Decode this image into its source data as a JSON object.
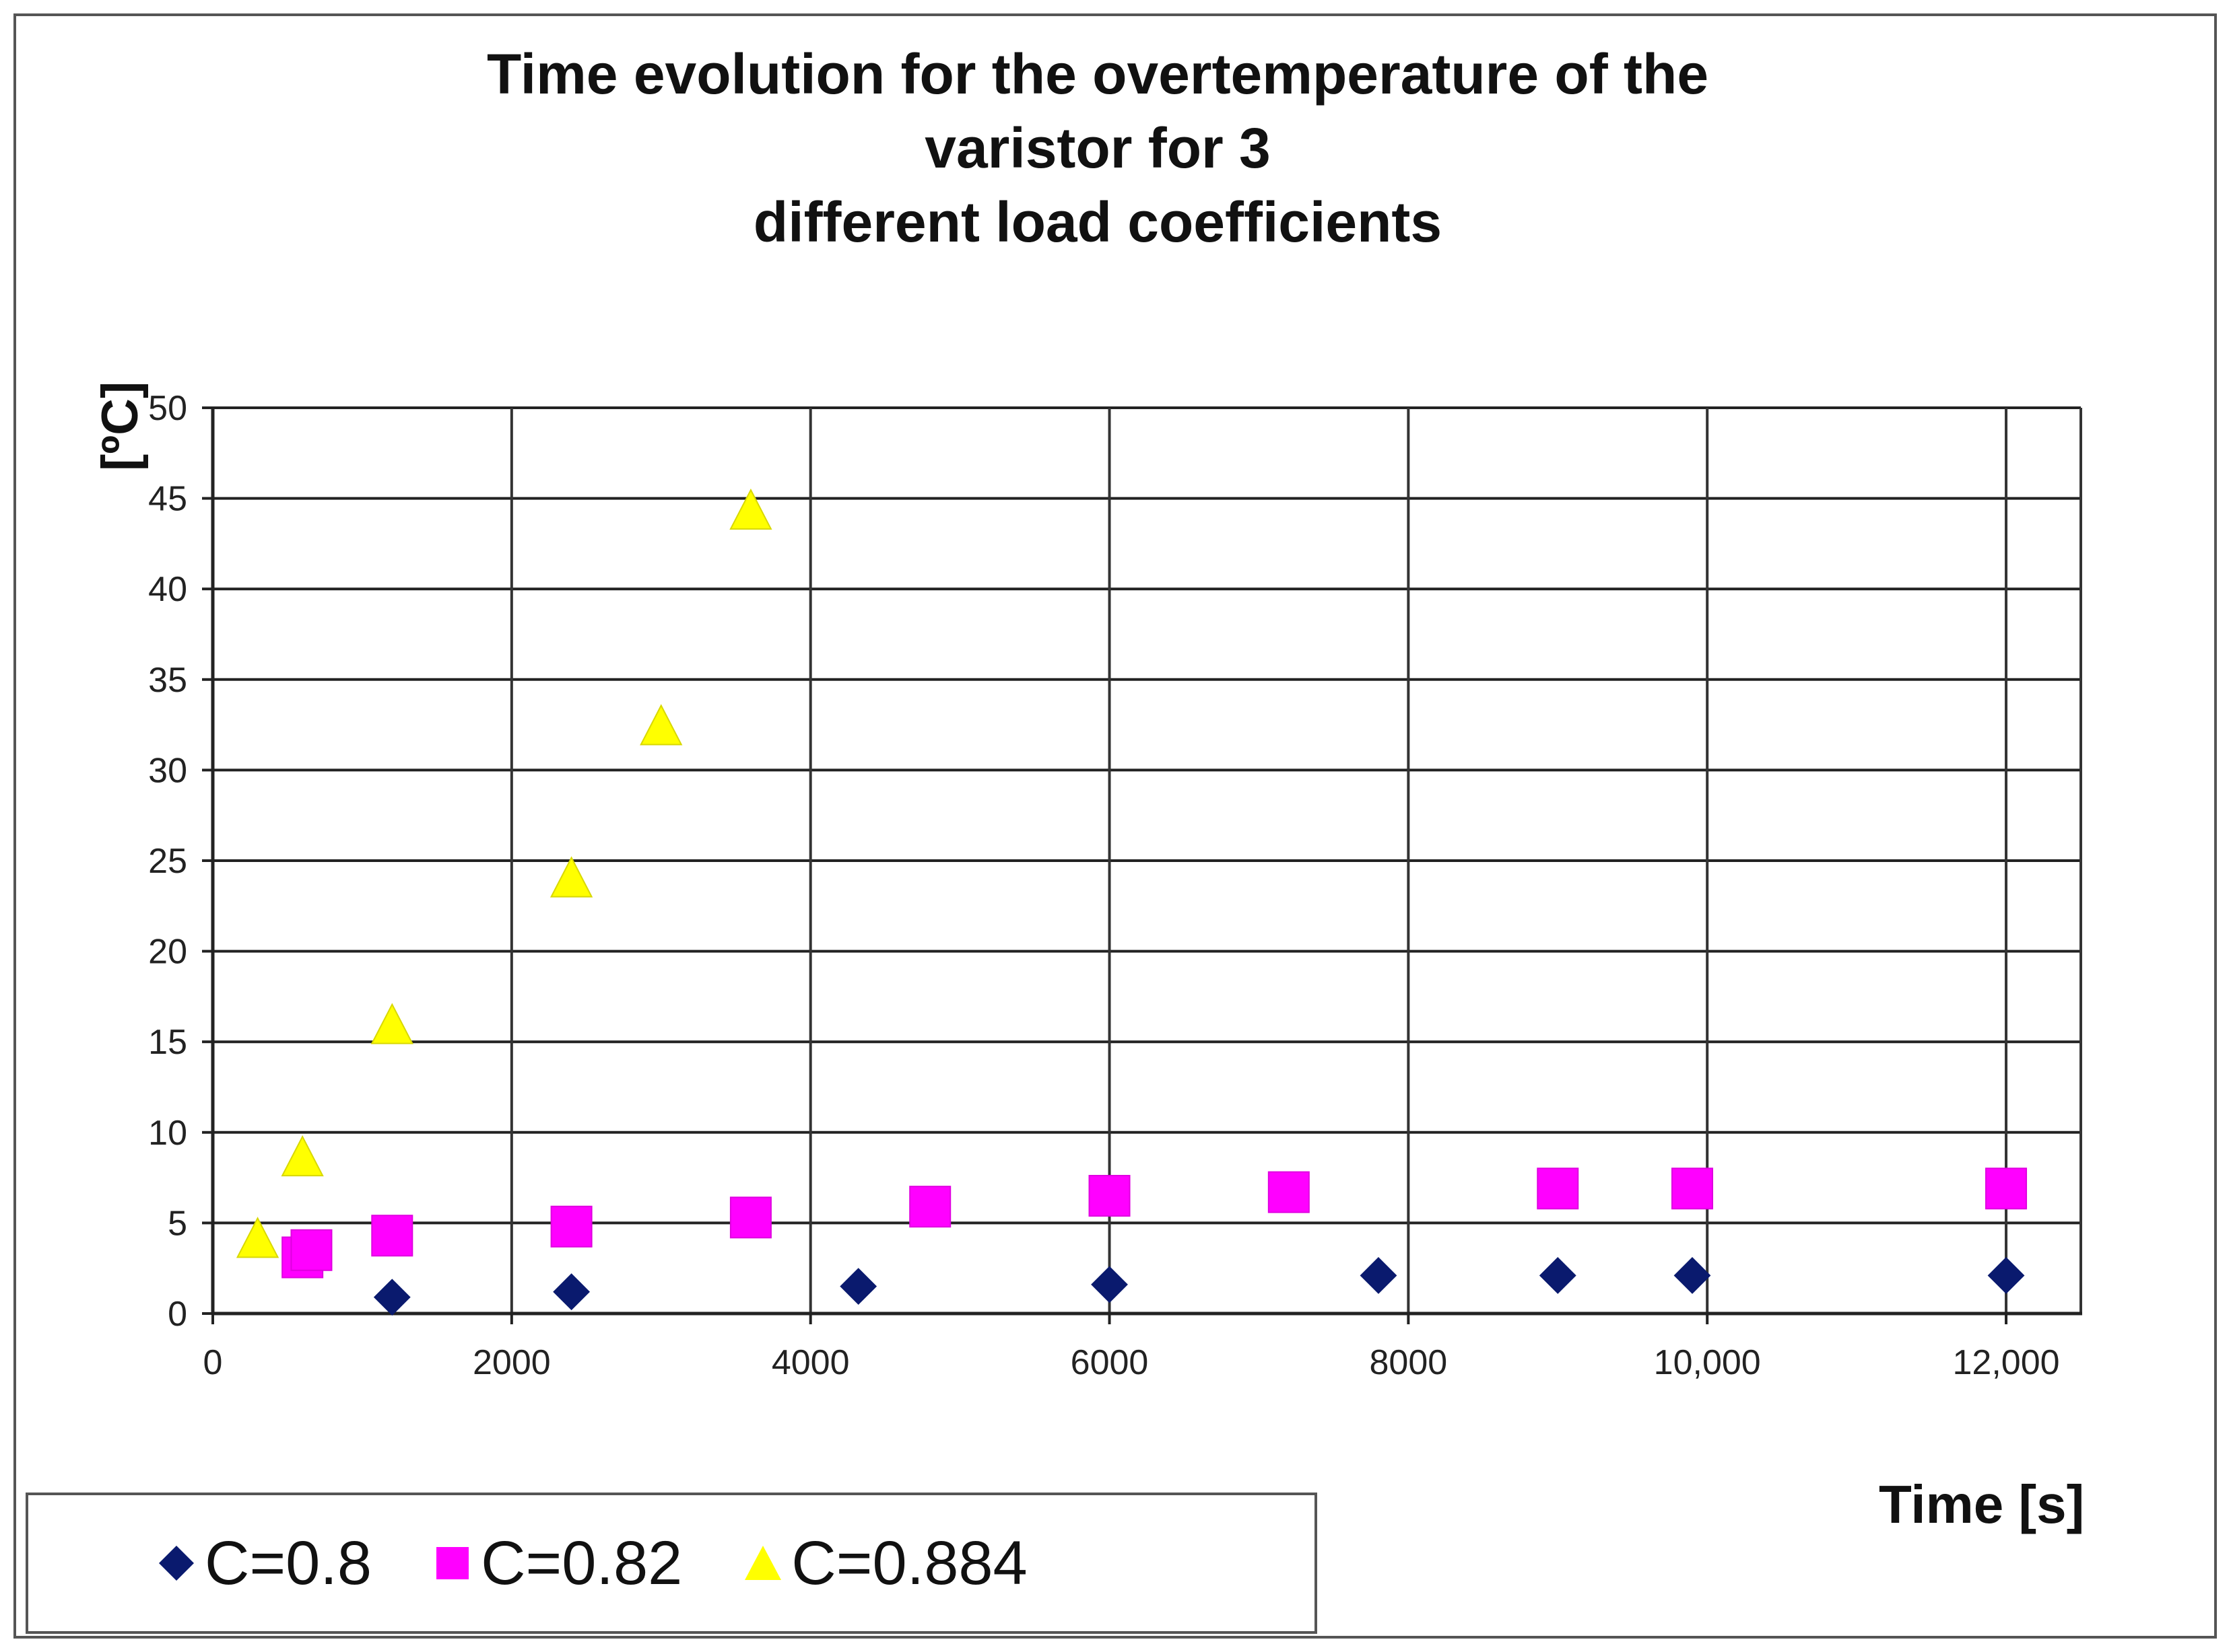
{
  "chart_data": {
    "type": "scatter",
    "title": "Time evolution for the overtemperature of the varistor for 3\ndifferent load coefficients",
    "xlabel": "Time [s]",
    "ylabel": "[ºC]",
    "xlim": [
      0,
      12500
    ],
    "ylim": [
      0,
      50
    ],
    "x_ticks": [
      0,
      2000,
      4000,
      6000,
      8000,
      10000,
      12000
    ],
    "x_tick_labels": [
      "0",
      "2000",
      "4000",
      "6000",
      "8000",
      "10,000",
      "12,000"
    ],
    "y_ticks": [
      0,
      5,
      10,
      15,
      20,
      25,
      30,
      35,
      40,
      45,
      50
    ],
    "y_tick_labels": [
      "0",
      "5",
      "10",
      "15",
      "20",
      "25",
      "30",
      "35",
      "40",
      "45",
      "50"
    ],
    "grid": true,
    "legend_position": "bottom-left",
    "series": [
      {
        "name": "C=0.8",
        "marker": "diamond",
        "color": "#0a1a6e",
        "points": [
          [
            1200,
            0.9
          ],
          [
            2400,
            1.2
          ],
          [
            4320,
            1.5
          ],
          [
            6000,
            1.6
          ],
          [
            7800,
            2.1
          ],
          [
            9000,
            2.1
          ],
          [
            9900,
            2.1
          ],
          [
            12000,
            2.1
          ]
        ]
      },
      {
        "name": "C=0.82",
        "marker": "square",
        "color": "#ff00ff",
        "points": [
          [
            600,
            3.1
          ],
          [
            660,
            3.5
          ],
          [
            1200,
            4.3
          ],
          [
            2400,
            4.8
          ],
          [
            3600,
            5.3
          ],
          [
            4800,
            5.9
          ],
          [
            6000,
            6.5
          ],
          [
            7200,
            6.7
          ],
          [
            9000,
            6.9
          ],
          [
            9900,
            6.9
          ],
          [
            12000,
            6.9
          ]
        ]
      },
      {
        "name": "C=0.884",
        "marker": "triangle",
        "color": "#ffff00",
        "points": [
          [
            300,
            4.0
          ],
          [
            600,
            8.5
          ],
          [
            1200,
            15.8
          ],
          [
            2400,
            23.9
          ],
          [
            3000,
            32.3
          ],
          [
            3600,
            44.2
          ]
        ]
      }
    ]
  }
}
